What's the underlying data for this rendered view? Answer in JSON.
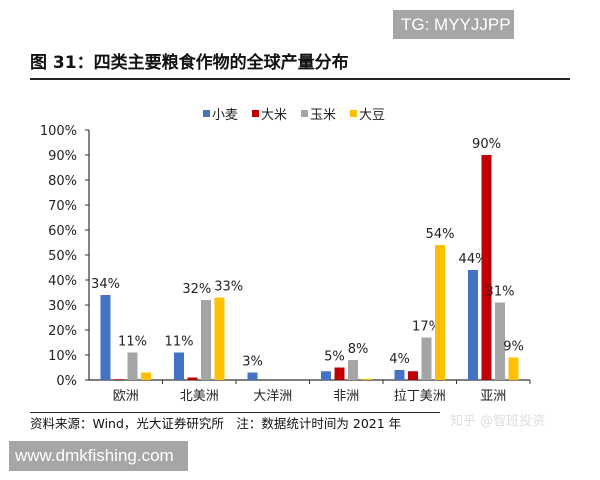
{
  "watermark_tg": "TG: MYYJJPP",
  "figure_title": "图 31：四类主要粮食作物的全球产量分布",
  "source_note": "资料来源：Wind，光大证券研究所　注：数据统计时间为 2021 年",
  "zhihu_watermark": "知乎 @智班投资",
  "site_watermark": "www.dmkfishing.com",
  "chart_data": {
    "type": "bar",
    "title": "",
    "xlabel": "",
    "ylabel": "",
    "ylim": [
      0,
      100
    ],
    "y_tick_labels": [
      "0%",
      "10%",
      "20%",
      "30%",
      "40%",
      "50%",
      "60%",
      "70%",
      "80%",
      "90%",
      "100%"
    ],
    "grid": false,
    "legend_position": "top",
    "categories": [
      "欧洲",
      "北美洲",
      "大洋洲",
      "非洲",
      "拉丁美洲",
      "亚洲"
    ],
    "series": [
      {
        "name": "小麦",
        "color": "#4472c4",
        "values": [
          34,
          11,
          3,
          3.5,
          4,
          44
        ],
        "labels": [
          "34%",
          "11%",
          "3%",
          null,
          "4%",
          "44%"
        ]
      },
      {
        "name": "大米",
        "color": "#c00000",
        "values": [
          0.3,
          1,
          0,
          5,
          3.5,
          90
        ],
        "labels": [
          null,
          null,
          null,
          "5%",
          null,
          "90%"
        ]
      },
      {
        "name": "玉米",
        "color": "#a5a5a5",
        "values": [
          11,
          32,
          0,
          8,
          17,
          31
        ],
        "labels": [
          "11%",
          "32%",
          null,
          "8%",
          "17%",
          "31%"
        ]
      },
      {
        "name": "大豆",
        "color": "#ffc000",
        "values": [
          3,
          33,
          0,
          0.5,
          54,
          9
        ],
        "labels": [
          null,
          "33%",
          null,
          null,
          "54%",
          "9%"
        ]
      }
    ]
  }
}
